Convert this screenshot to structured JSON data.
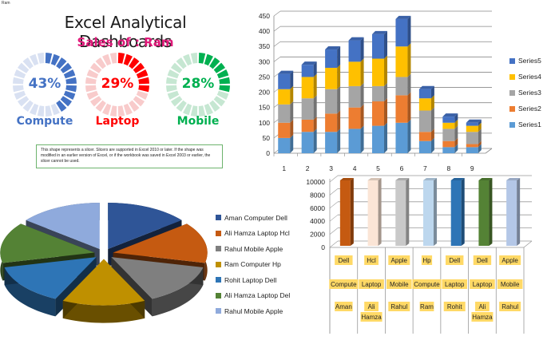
{
  "header": {
    "corner_label": "Ram",
    "title": "Excel Analytical Dashboards",
    "subtitle": "Sales of : Ram"
  },
  "donuts": [
    {
      "label": "Compute",
      "percent": 43,
      "percent_text": "43%",
      "color": "#4472c4",
      "light_color": "#d9e1f2"
    },
    {
      "label": "Laptop",
      "percent": 29,
      "percent_text": "29%",
      "color": "#ff0000",
      "light_color": "#f8cbcb"
    },
    {
      "label": "Mobile",
      "percent": 28,
      "percent_text": "28%",
      "color": "#00b050",
      "light_color": "#c6e7d2"
    }
  ],
  "slicer_note": "This shape represents a slicer. Slicers are supported in Excel 2010 or later. If the shape was modified in an earlier version of Excel, or if the workbook was saved in Excel 2003 or earlier, the slicer cannot be used.",
  "chart_data": [
    {
      "type": "bar",
      "stacked": true,
      "title": "",
      "xlabel": "",
      "ylabel": "",
      "categories": [
        "1",
        "2",
        "3",
        "4",
        "5",
        "6",
        "7",
        "8",
        "9"
      ],
      "ylim": [
        0,
        450
      ],
      "yticks": [
        0,
        50,
        100,
        150,
        200,
        250,
        300,
        350,
        400,
        450
      ],
      "grid": true,
      "legend_position": "right",
      "series": [
        {
          "name": "Series1",
          "color": "#5b9bd5",
          "values": [
            50,
            70,
            70,
            80,
            90,
            100,
            40,
            20,
            20
          ]
        },
        {
          "name": "Series2",
          "color": "#ed7d31",
          "values": [
            50,
            40,
            60,
            70,
            80,
            90,
            30,
            20,
            10
          ]
        },
        {
          "name": "Series3",
          "color": "#a5a5a5",
          "values": [
            60,
            70,
            80,
            70,
            50,
            60,
            70,
            40,
            40
          ]
        },
        {
          "name": "Series4",
          "color": "#ffc000",
          "values": [
            50,
            70,
            70,
            80,
            90,
            100,
            40,
            20,
            20
          ]
        },
        {
          "name": "Series5",
          "color": "#4472c4",
          "values": [
            50,
            40,
            60,
            70,
            80,
            90,
            30,
            20,
            10
          ]
        }
      ]
    },
    {
      "type": "bar",
      "title": "",
      "ylim": [
        0,
        10000
      ],
      "yticks": [
        0,
        2000,
        4000,
        6000,
        8000,
        10000
      ],
      "grid": true,
      "categories": [
        [
          "Dell",
          "Compute",
          "Aman"
        ],
        [
          "Hcl",
          "Laptop",
          "Ali Hamza"
        ],
        [
          "Apple",
          "Mobile",
          "Rahul"
        ],
        [
          "Hp",
          "Compute",
          "Ram"
        ],
        [
          "Dell",
          "Laptop",
          "Rohit"
        ],
        [
          "Dell",
          "Laptop",
          "Ali Hamza"
        ],
        [
          "Apple",
          "Mobile",
          "Rahul"
        ]
      ],
      "values": [
        10000,
        10000,
        10000,
        10000,
        10000,
        10000,
        10000
      ],
      "colors": [
        "#c55a11",
        "#fbe5d6",
        "#c9c9c9",
        "#bdd7ee",
        "#2e75b6",
        "#548235",
        "#b4c7e7"
      ]
    },
    {
      "type": "pie",
      "style": "3d-exploded",
      "labels": [
        "Aman Computer Dell",
        "Ali Hamza  Laptop Hcl",
        "Rahul Mobile Apple",
        "Ram Computer  Hp",
        "Rohit Laptop Dell",
        "Ali Hamza  Laptop Del",
        "Rahul Mobile Apple"
      ],
      "values": [
        1,
        1,
        1,
        1,
        1,
        1,
        1
      ],
      "colors": [
        "#2f5597",
        "#c55a11",
        "#7f7f7f",
        "#bf9000",
        "#2e75b6",
        "#548235",
        "#8faadc"
      ],
      "legend_position": "right"
    }
  ],
  "pie_legend": [
    {
      "label": "Aman Computer Dell",
      "color": "#2f5597"
    },
    {
      "label": "Ali Hamza  Laptop Hcl",
      "color": "#c55a11"
    },
    {
      "label": "Rahul Mobile Apple",
      "color": "#7f7f7f"
    },
    {
      "label": "Ram Computer  Hp",
      "color": "#bf9000"
    },
    {
      "label": "Rohit Laptop Dell",
      "color": "#2e75b6"
    },
    {
      "label": "Ali Hamza  Laptop Del",
      "color": "#548235"
    },
    {
      "label": "Rahul Mobile Apple",
      "color": "#8faadc"
    }
  ],
  "stacked_legend": [
    {
      "label": "Series5",
      "color": "#4472c4"
    },
    {
      "label": "Series4",
      "color": "#ffc000"
    },
    {
      "label": "Series3",
      "color": "#a5a5a5"
    },
    {
      "label": "Series2",
      "color": "#ed7d31"
    },
    {
      "label": "Series1",
      "color": "#5b9bd5"
    }
  ],
  "bottom_table": {
    "row1": [
      "Dell",
      "Hcl",
      "Apple",
      "Hp",
      "Dell",
      "Dell",
      "Apple"
    ],
    "row2": [
      "Compute",
      "Laptop",
      "Mobile",
      "Compute",
      "Laptop",
      "Laptop",
      "Mobile"
    ],
    "row3": [
      "Aman",
      "Ali Hamza",
      "Rahul",
      "Ram",
      "Rohit",
      "Ali Hamza",
      "Rahul"
    ]
  }
}
